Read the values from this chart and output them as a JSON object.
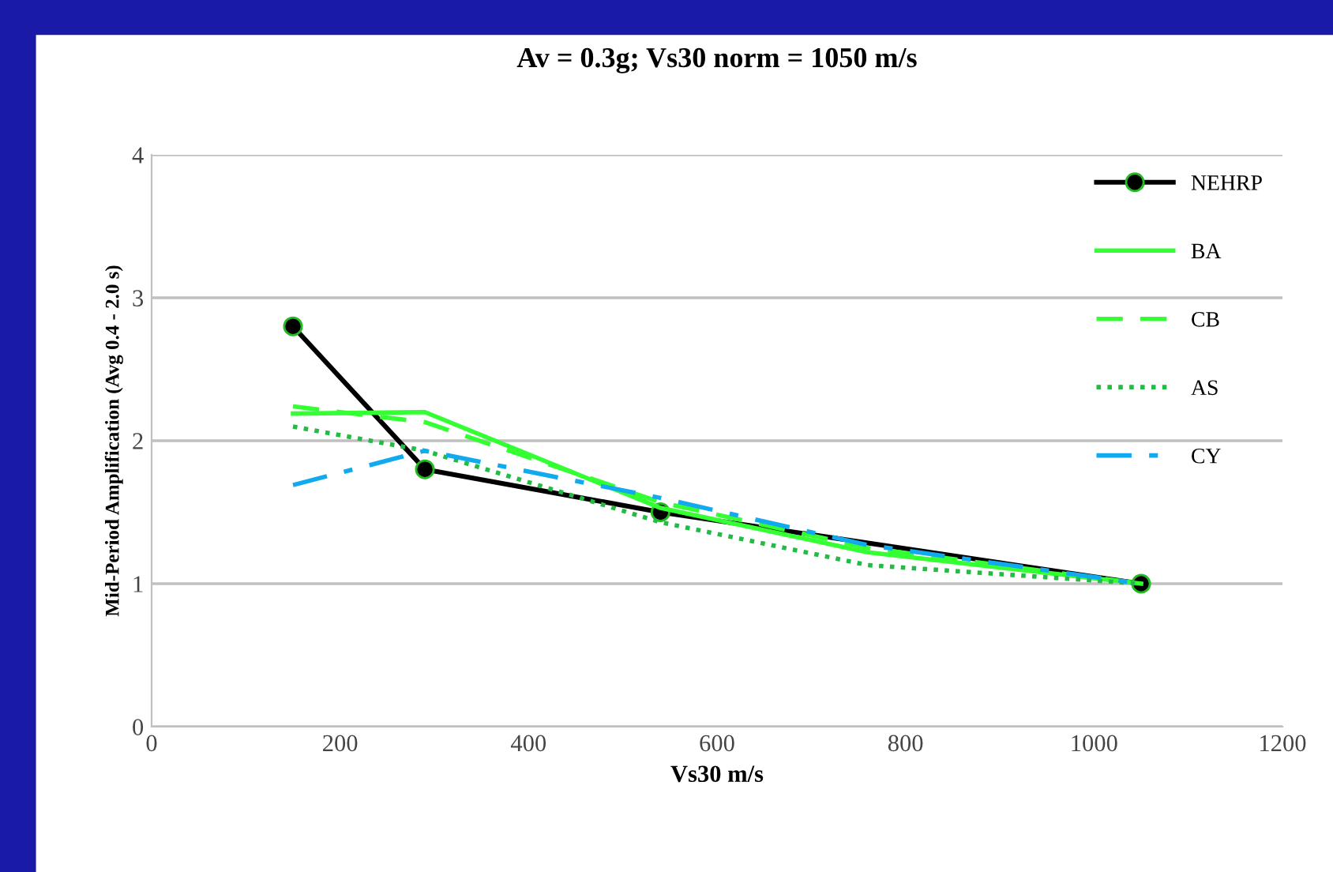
{
  "chart_data": {
    "type": "line",
    "title": "Av = 0.3g; Vs30 norm = 1050 m/s",
    "xlabel": "Vs30 m/s",
    "ylabel": "Mid-Period Amplification (Avg 0.4 - 2.0 s)",
    "xlim": [
      0,
      1200
    ],
    "xticks": [
      0,
      200,
      400,
      600,
      800,
      1000,
      1200
    ],
    "ylim": [
      0,
      4
    ],
    "yticks": [
      0,
      1,
      2,
      3,
      4
    ],
    "grid": "y",
    "legend": "top right",
    "series": [
      {
        "name": "NEHRP",
        "color": "#000000",
        "x": [
          150,
          290,
          540,
          1050
        ],
        "values": [
          2.8,
          1.8,
          1.5,
          1.0
        ],
        "marker": "circle",
        "line_style": "solid"
      },
      {
        "name": "BA",
        "color": "#33ff33",
        "x": [
          150,
          290,
          540,
          760,
          1050
        ],
        "values": [
          2.19,
          2.2,
          1.53,
          1.22,
          1.0
        ],
        "marker": "none",
        "line_style": "solid"
      },
      {
        "name": "CB",
        "color": "#33ff33",
        "x": [
          150,
          290,
          540,
          760,
          1050
        ],
        "values": [
          2.24,
          2.13,
          1.57,
          1.25,
          1.0
        ],
        "marker": "none",
        "line_style": "dashed"
      },
      {
        "name": "AS",
        "color": "#22bb44",
        "x": [
          150,
          290,
          540,
          760,
          1050
        ],
        "values": [
          2.1,
          1.93,
          1.43,
          1.13,
          1.0
        ],
        "marker": "none",
        "line_style": "dotted"
      },
      {
        "name": "CY",
        "color": "#11aaee",
        "x": [
          150,
          290,
          540,
          760,
          1050
        ],
        "values": [
          1.69,
          1.93,
          1.6,
          1.27,
          1.0
        ],
        "marker": "none",
        "line_style": "dashdot"
      }
    ]
  }
}
